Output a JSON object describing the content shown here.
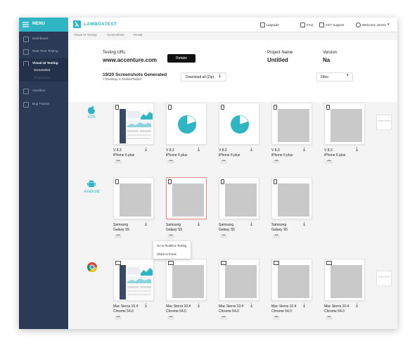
{
  "sidebar": {
    "title": "MENU",
    "items": [
      "Dashboard",
      "Real Time Testing",
      "Visual UI Testing",
      "Screenshot",
      "Responsive",
      "Sandbox",
      "Bug Tracker"
    ]
  },
  "header": {
    "logo": "LAMBDATEST",
    "links": [
      "Upgrade",
      "FAQ",
      "24/7 Support",
      "Welcome James"
    ]
  },
  "breadcrumb": [
    "Visual UI Testing",
    "Screenshots",
    "Result"
  ],
  "info": {
    "url_label": "Testing URL",
    "url": "www.accenture.com",
    "retake": "Retake",
    "project_label": "Project Name",
    "project": "Untitled",
    "version_label": "Version",
    "version": "Na"
  },
  "summary": {
    "title": "19/20 Screenshots Generated",
    "detail": "7 Desktop 3 Mobile/Tablet",
    "download": "Download all (Zip)",
    "filter": "Filter"
  },
  "sections": [
    {
      "label": "iOS",
      "cards": [
        {
          "lines": [
            "V 8.3",
            "iPhone 6 plus"
          ]
        },
        {
          "lines": [
            "V 8.3",
            "iPhone 6 plus"
          ]
        },
        {
          "lines": [
            "V 8.3",
            "iPhone 6 plus"
          ]
        },
        {
          "lines": [
            "V 8.3",
            "iPhone 6 plus"
          ]
        },
        {
          "lines": [
            "V 8.3",
            "iPhone 6 plus"
          ]
        }
      ],
      "add_more": "Enter More"
    },
    {
      "label": "Android",
      "cards": [
        {
          "lines": [
            "Samsung",
            "Galaxy S5"
          ]
        },
        {
          "lines": [
            "Samsung",
            "Galaxy S5"
          ]
        },
        {
          "lines": [
            "Samsung",
            "Galaxy S5"
          ]
        },
        {
          "lines": [
            "Samsung",
            "Galaxy S5"
          ]
        }
      ]
    },
    {
      "cards": [
        {
          "lines": [
            "Mac Sierra 10.4",
            "Chrome 54.0"
          ]
        },
        {
          "lines": [
            "Mac Sierra 10.4",
            "Chrome 54.0"
          ]
        },
        {
          "lines": [
            "Mac Sierra 10.4",
            "Chrome 54.0"
          ]
        },
        {
          "lines": [
            "Mac Sierra 10.4",
            "Chrome 54.0"
          ]
        },
        {
          "lines": [
            "Mac Sierra 10.4",
            "Chrome 54.0"
          ]
        }
      ],
      "add_more": "Enter More"
    }
  ],
  "context_menu": [
    "Go to Realtime Testing",
    "Share to Email"
  ]
}
